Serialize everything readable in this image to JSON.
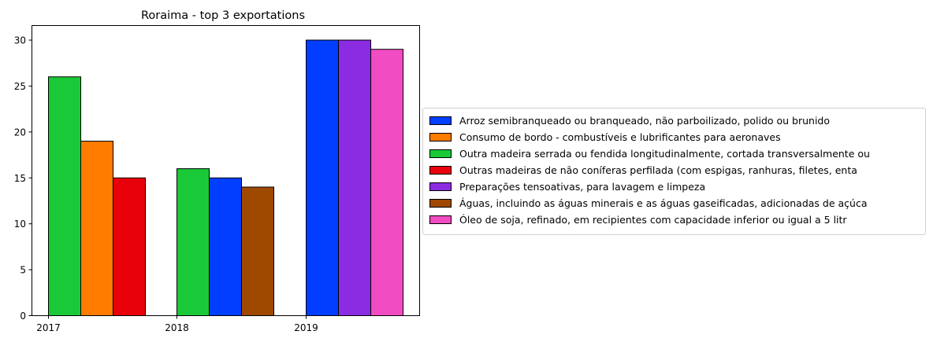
{
  "chart_data": {
    "type": "bar",
    "title": "Roraima - top 3 exportations",
    "xlabel": "",
    "ylabel": "",
    "ylim": [
      0,
      31.5
    ],
    "yticks": [
      0,
      5,
      10,
      15,
      20,
      25,
      30
    ],
    "categories": [
      "2017",
      "2018",
      "2019"
    ],
    "legend_position": "right",
    "series": [
      {
        "name": "Arroz semibranqueado ou branqueado, não parboilizado, polido ou brunido",
        "color": "#023eff",
        "values": [
          null,
          15,
          30
        ]
      },
      {
        "name": "Consumo de bordo - combustíveis e lubrificantes para aeronaves",
        "color": "#ff7c00",
        "values": [
          19,
          null,
          null
        ]
      },
      {
        "name": "Outra madeira serrada ou fendida longitudinalmente, cortada transversalmente ou",
        "color": "#1ac938",
        "values": [
          26,
          16,
          null
        ]
      },
      {
        "name": "Outras madeiras de não coníferas perfilada (com espigas, ranhuras, filetes, enta",
        "color": "#e8000b",
        "values": [
          15,
          null,
          null
        ]
      },
      {
        "name": "Preparações tensoativas, para lavagem e limpeza",
        "color": "#8b2be2",
        "values": [
          null,
          null,
          30
        ]
      },
      {
        "name": "Águas, incluindo as águas minerais e as águas gaseificadas, adicionadas de açúca",
        "color": "#9f4800",
        "values": [
          null,
          14,
          null
        ]
      },
      {
        "name": "Óleo de soja, refinado, em recipientes com capacidade inferior ou igual a 5 litr",
        "color": "#f14cc1",
        "values": [
          null,
          null,
          29
        ]
      }
    ],
    "bar_order": [
      [
        "Outra madeira serrada ou fendida longitudinalmente, cortada transversalmente ou",
        "Consumo de bordo - combustíveis e lubrificantes para aeronaves",
        "Outras madeiras de não coníferas perfilada (com espigas, ranhuras, filetes, enta"
      ],
      [
        "Outra madeira serrada ou fendida longitudinalmente, cortada transversalmente ou",
        "Arroz semibranqueado ou branqueado, não parboilizado, polido ou brunido",
        "Águas, incluindo as águas minerais e as águas gaseificadas, adicionadas de açúca"
      ],
      [
        "Arroz semibranqueado ou branqueado, não parboilizado, polido ou brunido",
        "Preparações tensoativas, para lavagem e limpeza",
        "Óleo de soja, refinado, em recipientes com capacidade inferior ou igual a 5 litr"
      ]
    ]
  }
}
